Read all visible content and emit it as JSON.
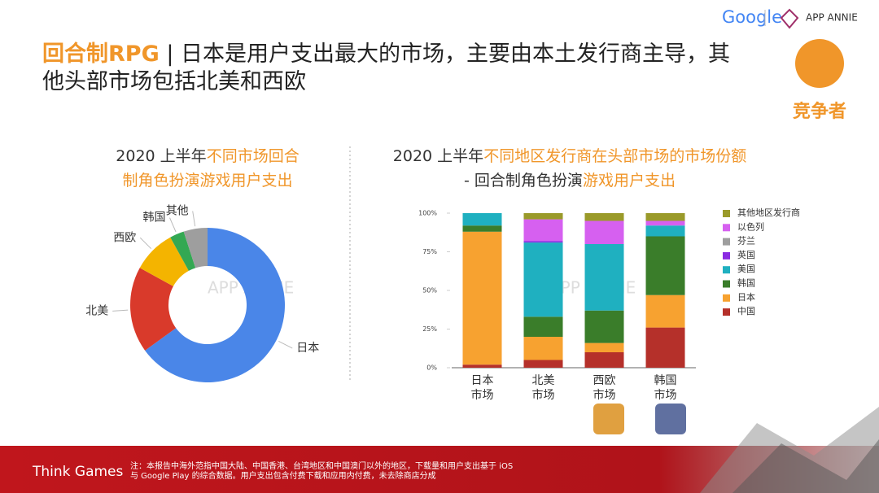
{
  "header": {
    "title_highlight": "回合制RPG",
    "title": "| 日本是用户支出最大的市场，主要由本土发行商主导，其他头部市场包括北美和西欧",
    "logo_google": "Google",
    "logo_appannie": "APP ANNIE",
    "badge": "竞争者"
  },
  "watermark": "APP ANNIE",
  "footer": {
    "brand": "Think Games",
    "note": "注：本报告中海外范指中国大陆、中国香港、台湾地区和中国澳门以外的地区，下载量和用户支出基于 iOS 与 Google Play 的综合数据。用户支出包含付费下载和应用内付费，未去除商店分成"
  },
  "chart_data": [
    {
      "type": "donut",
      "title_lines": [
        [
          {
            "text": "2020 上半年",
            "color": "#333333"
          },
          {
            "text": "不同市场回合",
            "color": "#f0962a"
          }
        ],
        [
          {
            "text": "制角色扮演游戏用户支出",
            "color": "#f0962a"
          }
        ]
      ],
      "categories": [
        "日本",
        "北美",
        "西欧",
        "韩国",
        "其他"
      ],
      "values": [
        65,
        18,
        9,
        3,
        5
      ],
      "colors": [
        "#4a86e8",
        "#d93a2b",
        "#f4b400",
        "#34a853",
        "#9e9e9e"
      ]
    },
    {
      "type": "stacked-bar",
      "title_lines": [
        [
          {
            "text": "2020 上半年",
            "color": "#333333"
          },
          {
            "text": "不同地区发行商在头部市场的市场份额",
            "color": "#f0962a"
          }
        ],
        [
          {
            "text": "- 回合制角色扮演",
            "color": "#333333"
          },
          {
            "text": "游戏用户支出",
            "color": "#f0962a"
          }
        ]
      ],
      "categories": [
        "日本市场",
        "北美市场",
        "西欧市场",
        "韩国市场"
      ],
      "ylim": [
        0,
        100
      ],
      "yticks": [
        {
          "value": 0,
          "label": "0%"
        },
        {
          "value": 25,
          "label": "25%"
        },
        {
          "value": 50,
          "label": "50%"
        },
        {
          "value": 75,
          "label": "75%"
        },
        {
          "value": 100,
          "label": "100%"
        }
      ],
      "grid": false,
      "series": [
        {
          "name": "中国",
          "color": "#b5302a",
          "values": [
            2,
            5,
            10,
            26
          ]
        },
        {
          "name": "日本",
          "color": "#f7a230",
          "values": [
            86,
            15,
            6,
            21
          ]
        },
        {
          "name": "韩国",
          "color": "#3a7d2a",
          "values": [
            4,
            13,
            21,
            38
          ]
        },
        {
          "name": "美国",
          "color": "#1fb0c0",
          "values": [
            8,
            48,
            43,
            7
          ]
        },
        {
          "name": "英国",
          "color": "#8a2be2",
          "values": [
            0,
            1,
            0,
            0
          ]
        },
        {
          "name": "芬兰",
          "color": "#9e9e9e",
          "values": [
            0,
            0,
            0,
            0
          ]
        },
        {
          "name": "以色列",
          "color": "#d660f0",
          "values": [
            0,
            14,
            15,
            3
          ]
        },
        {
          "name": "其他地区发行商",
          "color": "#9a9a2a",
          "values": [
            0,
            4,
            5,
            5
          ]
        }
      ]
    }
  ]
}
